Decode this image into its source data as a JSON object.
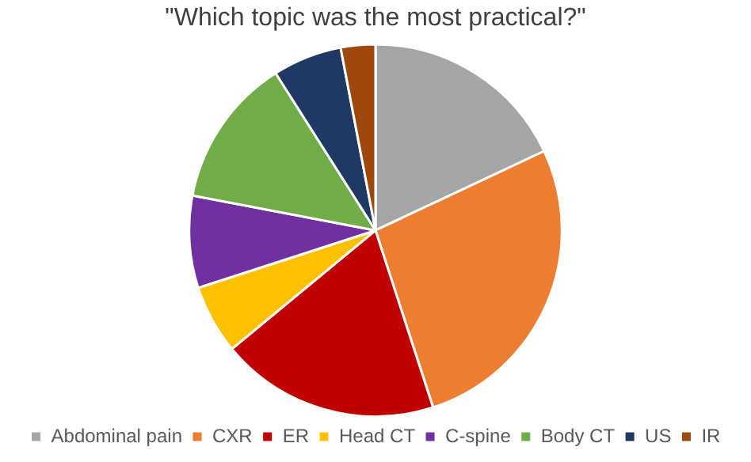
{
  "chart_data": {
    "type": "pie",
    "title": "\"Which topic was the most practical?\"",
    "categories": [
      "Abdominal pain",
      "CXR",
      "ER",
      "Head CT",
      "C-spine",
      "Body CT",
      "US",
      "IR"
    ],
    "values": [
      18,
      27,
      19,
      6,
      8,
      13,
      6,
      3
    ],
    "colors": [
      "#a5a5a5",
      "#ed7d31",
      "#c00000",
      "#ffc000",
      "#7030a0",
      "#70ad47",
      "#203864",
      "#9e480e"
    ],
    "legend": "bottom"
  }
}
